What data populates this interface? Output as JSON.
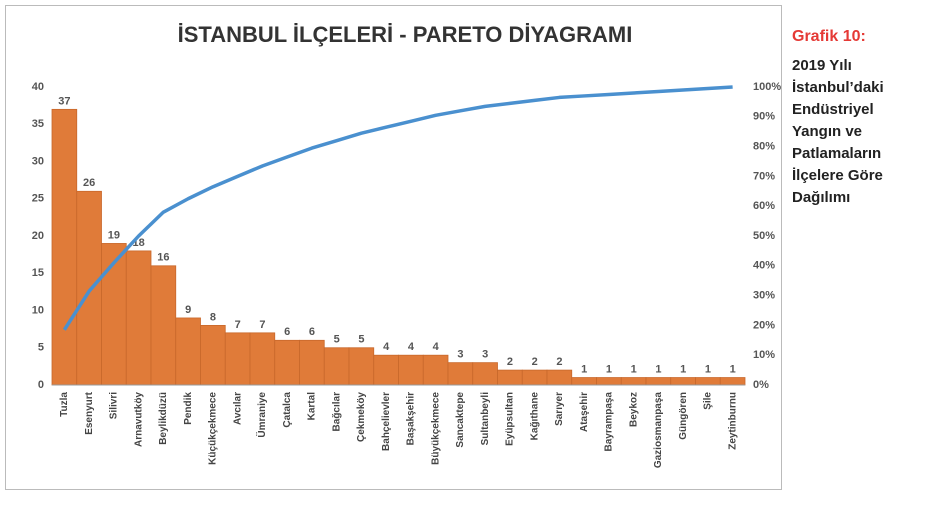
{
  "chart_data": {
    "type": "pareto",
    "title": "İSTANBUL İLÇELERİ - PARETO DİYAGRAMI",
    "caption": "Grafik 10:",
    "subtitle": [
      "2019 Yılı",
      "İstanbul’daki",
      "Endüstriyel",
      "Yangın ve",
      "Patlamaların",
      "İlçelere Göre",
      "Dağılımı"
    ],
    "categories": [
      "Tuzla",
      "Esenyurt",
      "Silivri",
      "Arnavutköy",
      "Beylikdüzü",
      "Pendik",
      "Küçükçekmece",
      "Avcılar",
      "Ümraniye",
      "Çatalca",
      "Kartal",
      "Bağcılar",
      "Çekmeköy",
      "Bahçelievler",
      "Başakşehir",
      "Büyükçekmece",
      "Sancaktepe",
      "Sultanbeyli",
      "Eyüpsultan",
      "Kağıthane",
      "Sarıyer",
      "Ataşehir",
      "Bayrampaşa",
      "Beykoz",
      "Gaziosmanpaşa",
      "Güngören",
      "Şile",
      "Zeytinburnu"
    ],
    "series": [
      {
        "color": "#e07b39",
        "values": [
          37,
          26,
          19,
          18,
          16,
          9,
          8,
          7,
          7,
          6,
          6,
          5,
          5,
          4,
          4,
          4,
          3,
          3,
          2,
          2,
          2,
          1,
          1,
          1,
          1,
          1,
          1,
          1
        ]
      },
      {
        "color": "#4a90cf",
        "axis": "y2",
        "values": [
          18.5,
          31.5,
          41,
          50,
          58,
          62.5,
          66.5,
          70,
          73.5,
          76.5,
          79.5,
          82,
          84.5,
          86.5,
          88.5,
          90.5,
          92,
          93.5,
          94.5,
          95.5,
          96.5,
          97,
          97.5,
          98,
          98.5,
          99,
          99.5,
          100
        ]
      }
    ],
    "ylim": [
      0,
      40
    ],
    "yticks": [
      0,
      5,
      10,
      15,
      20,
      25,
      30,
      35,
      40
    ],
    "y2lim": [
      0,
      100
    ],
    "y2ticks": [
      {
        "value": 0,
        "label": "0%"
      },
      {
        "value": 10,
        "label": "10%"
      },
      {
        "value": 20,
        "label": "20%"
      },
      {
        "value": 30,
        "label": "30%"
      },
      {
        "value": 40,
        "label": "40%"
      },
      {
        "value": 50,
        "label": "50%"
      },
      {
        "value": 60,
        "label": "60%"
      },
      {
        "value": 70,
        "label": "70%"
      },
      {
        "value": 80,
        "label": "80%"
      },
      {
        "value": 90,
        "label": "90%"
      },
      {
        "value": 100,
        "label": "100%"
      }
    ],
    "caption_color": "#e53935"
  }
}
